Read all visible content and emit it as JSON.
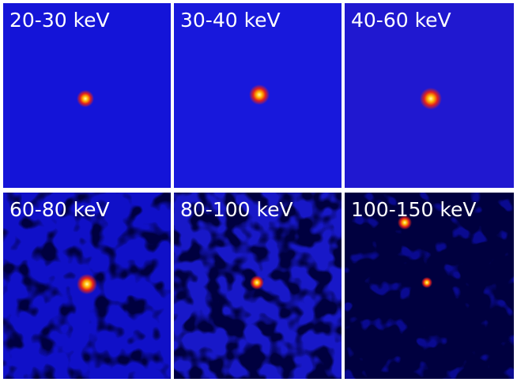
{
  "panels": [
    {
      "label": "20-30 keV"
    },
    {
      "label": "30-40 keV"
    },
    {
      "label": "40-60 keV"
    },
    {
      "label": "60-80 keV"
    },
    {
      "label": "80-100 keV"
    },
    {
      "label": "100-150 keV"
    }
  ]
}
